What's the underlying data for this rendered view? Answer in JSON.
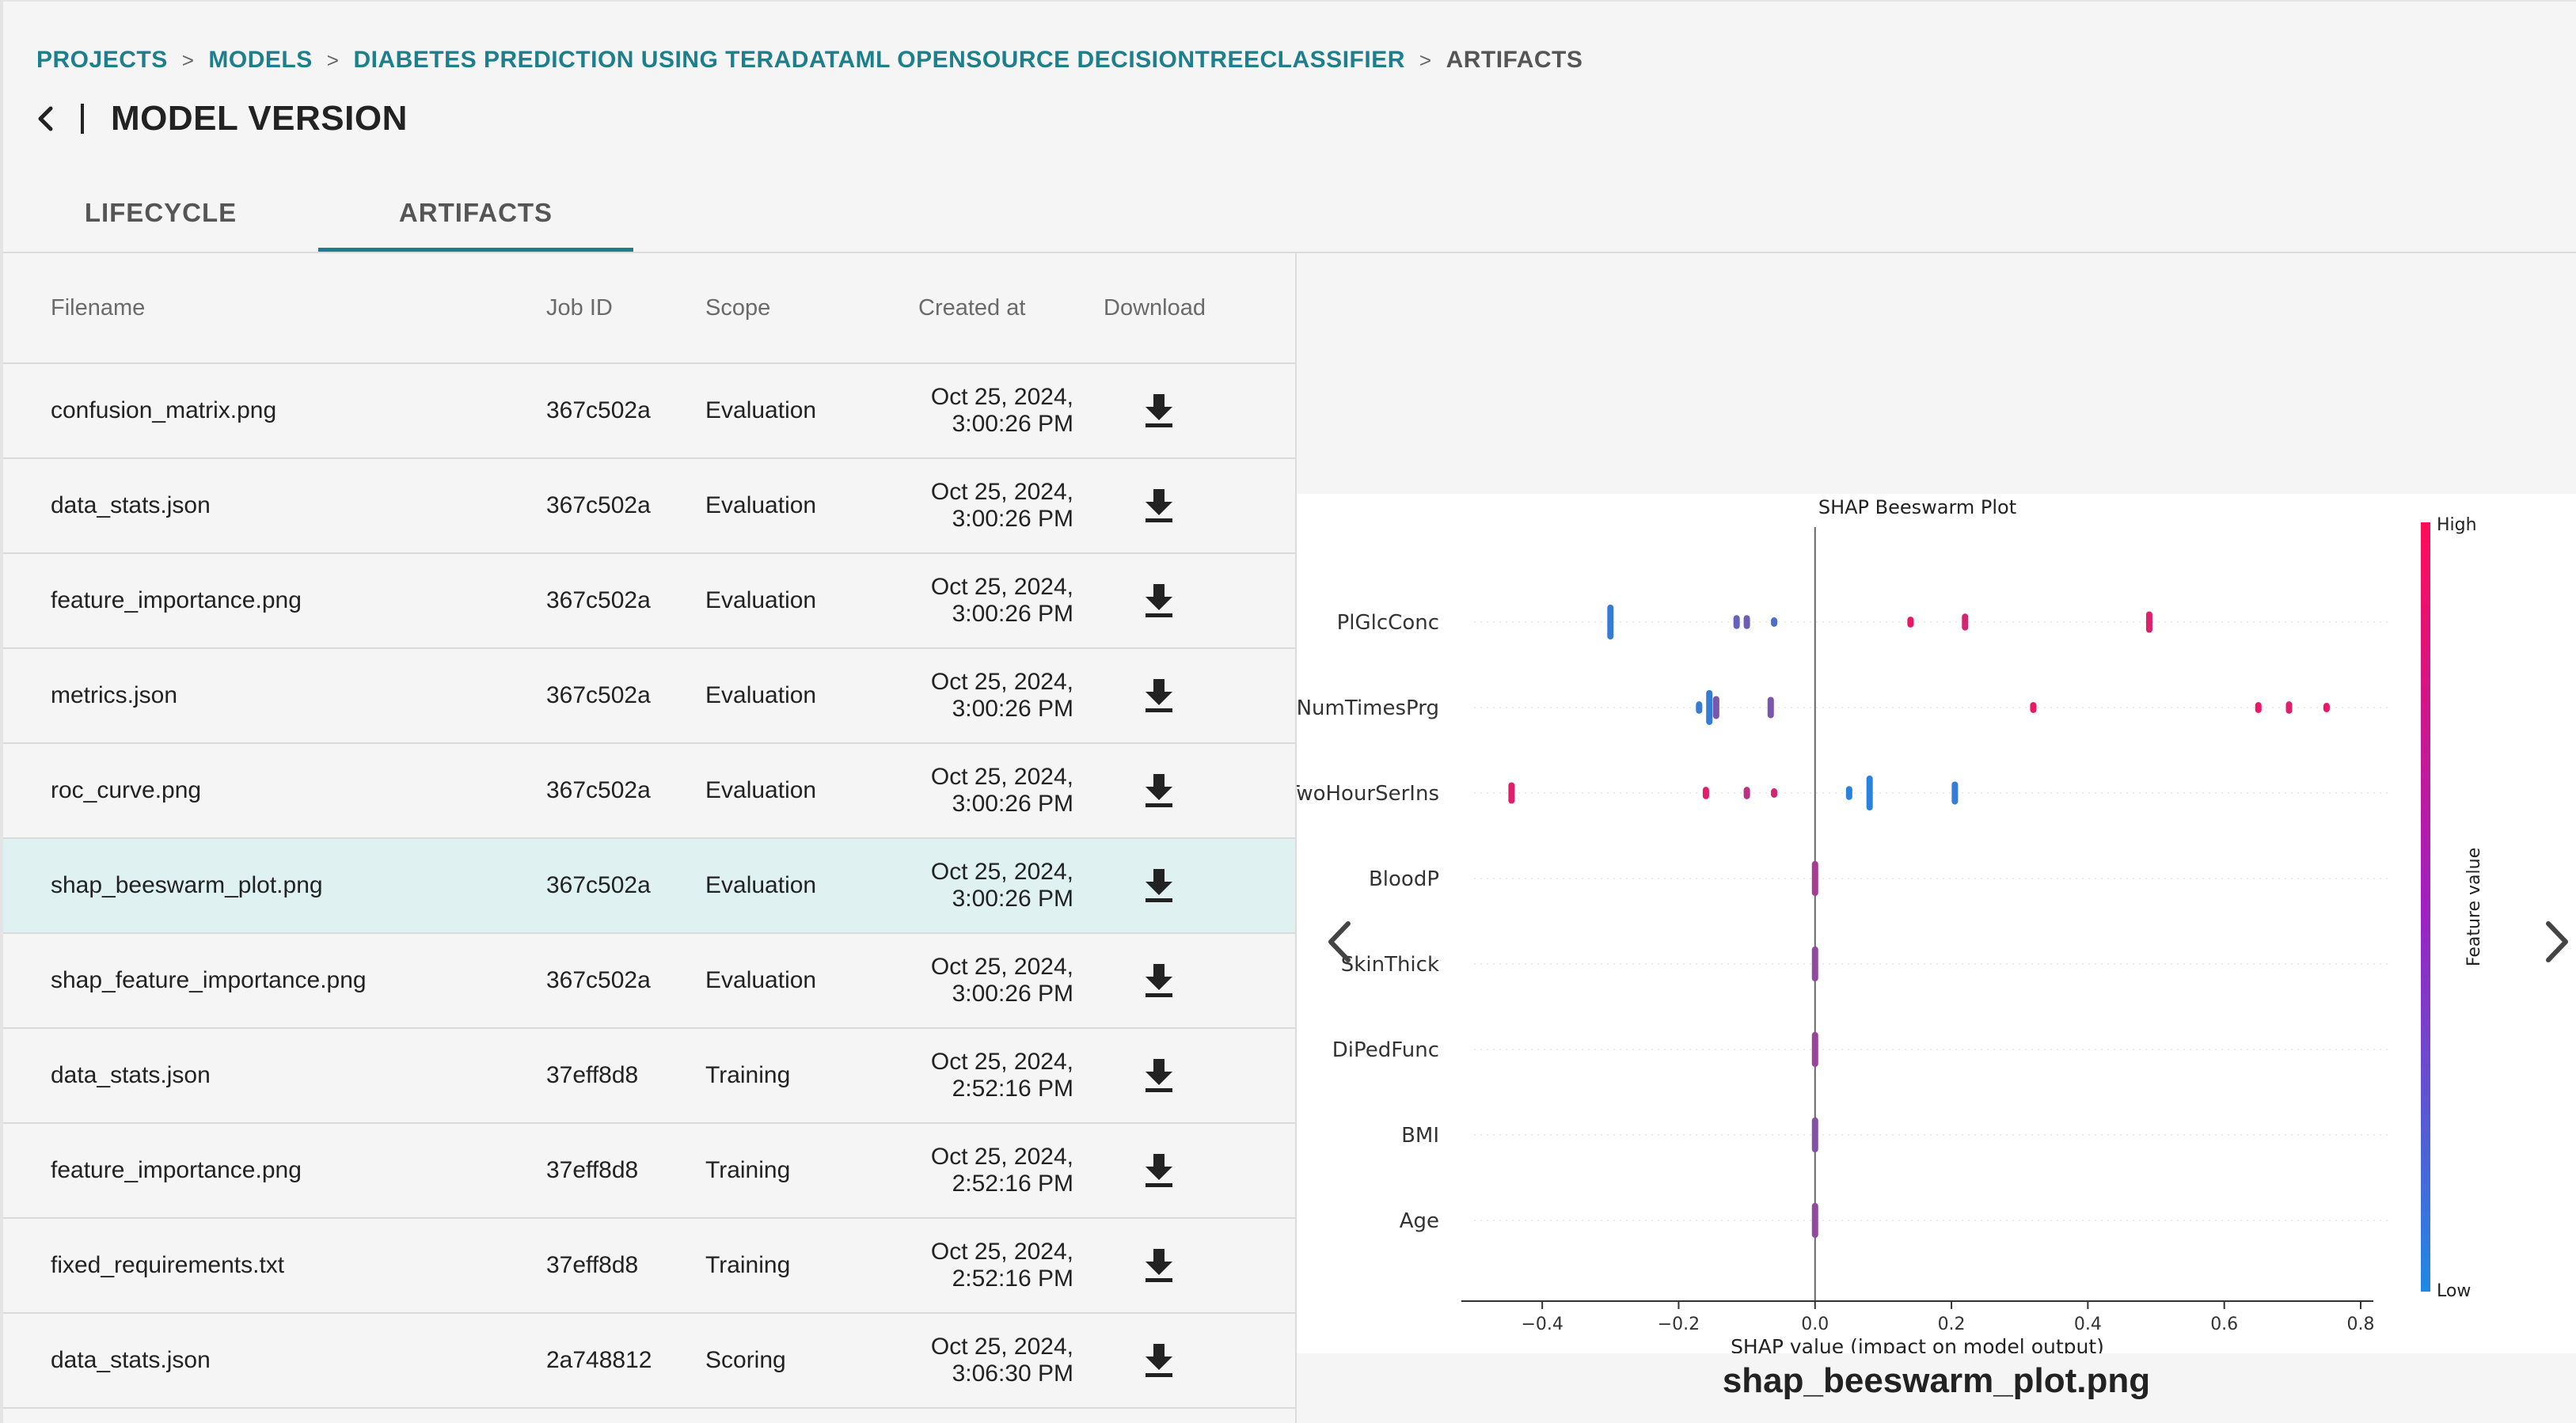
{
  "breadcrumb": {
    "items": [
      "PROJECTS",
      "MODELS",
      "DIABETES PREDICTION USING TERADATAML OPENSOURCE DECISIONTREECLASSIFIER"
    ],
    "current": "ARTIFACTS",
    "separator": ">"
  },
  "page": {
    "title": "MODEL VERSION"
  },
  "tabs": [
    {
      "label": "LIFECYCLE",
      "active": false
    },
    {
      "label": "ARTIFACTS",
      "active": true
    }
  ],
  "table": {
    "columns": {
      "filename": "Filename",
      "job_id": "Job ID",
      "scope": "Scope",
      "created_at": "Created at",
      "download": "Download"
    },
    "rows": [
      {
        "filename": "confusion_matrix.png",
        "job_id": "367c502a",
        "scope": "Evaluation",
        "date": "Oct 25, 2024,",
        "time": "3:00:26 PM"
      },
      {
        "filename": "data_stats.json",
        "job_id": "367c502a",
        "scope": "Evaluation",
        "date": "Oct 25, 2024,",
        "time": "3:00:26 PM"
      },
      {
        "filename": "feature_importance.png",
        "job_id": "367c502a",
        "scope": "Evaluation",
        "date": "Oct 25, 2024,",
        "time": "3:00:26 PM"
      },
      {
        "filename": "metrics.json",
        "job_id": "367c502a",
        "scope": "Evaluation",
        "date": "Oct 25, 2024,",
        "time": "3:00:26 PM"
      },
      {
        "filename": "roc_curve.png",
        "job_id": "367c502a",
        "scope": "Evaluation",
        "date": "Oct 25, 2024,",
        "time": "3:00:26 PM"
      },
      {
        "filename": "shap_beeswarm_plot.png",
        "job_id": "367c502a",
        "scope": "Evaluation",
        "date": "Oct 25, 2024,",
        "time": "3:00:26 PM",
        "selected": true
      },
      {
        "filename": "shap_feature_importance.png",
        "job_id": "367c502a",
        "scope": "Evaluation",
        "date": "Oct 25, 2024,",
        "time": "3:00:26 PM"
      },
      {
        "filename": "data_stats.json",
        "job_id": "37eff8d8",
        "scope": "Training",
        "date": "Oct 25, 2024,",
        "time": "2:52:16 PM"
      },
      {
        "filename": "feature_importance.png",
        "job_id": "37eff8d8",
        "scope": "Training",
        "date": "Oct 25, 2024,",
        "time": "2:52:16 PM"
      },
      {
        "filename": "fixed_requirements.txt",
        "job_id": "37eff8d8",
        "scope": "Training",
        "date": "Oct 25, 2024,",
        "time": "2:52:16 PM"
      },
      {
        "filename": "data_stats.json",
        "job_id": "2a748812",
        "scope": "Scoring",
        "date": "Oct 25, 2024,",
        "time": "3:06:30 PM"
      }
    ]
  },
  "preview": {
    "caption": "shap_beeswarm_plot.png",
    "icons": {
      "prev": "chevron-left-icon",
      "next": "chevron-right-icon"
    }
  },
  "chart_data": {
    "type": "scatter",
    "title": "SHAP Beeswarm Plot",
    "xlabel": "SHAP value (impact on model output)",
    "xlim": [
      -0.5,
      0.8
    ],
    "xticks": [
      "−0.4",
      "−0.2",
      "0.0",
      "0.2",
      "0.4",
      "0.6",
      "0.8"
    ],
    "xtick_values": [
      -0.4,
      -0.2,
      0.0,
      0.2,
      0.4,
      0.6,
      0.8
    ],
    "colorbar": {
      "label": "Feature value",
      "high": "High",
      "low": "Low",
      "low_color": "#1e88e5",
      "high_color": "#ff0d57"
    },
    "features": [
      {
        "name": "PlGlcConc",
        "points": [
          {
            "x": -0.3,
            "v": 0.1,
            "spread": 18
          },
          {
            "x": -0.115,
            "v": 0.3,
            "spread": 4
          },
          {
            "x": -0.1,
            "v": 0.35,
            "spread": 4
          },
          {
            "x": -0.06,
            "v": 0.2,
            "spread": 1
          },
          {
            "x": 0.14,
            "v": 0.9,
            "spread": 2
          },
          {
            "x": 0.22,
            "v": 0.8,
            "spread": 6
          },
          {
            "x": 0.49,
            "v": 0.85,
            "spread": 9
          }
        ]
      },
      {
        "name": "NumTimesPrg",
        "points": [
          {
            "x": -0.17,
            "v": 0.1,
            "spread": 3
          },
          {
            "x": -0.155,
            "v": 0.1,
            "spread": 18
          },
          {
            "x": -0.145,
            "v": 0.4,
            "spread": 10
          },
          {
            "x": -0.065,
            "v": 0.4,
            "spread": 9
          },
          {
            "x": 0.32,
            "v": 0.9,
            "spread": 2
          },
          {
            "x": 0.65,
            "v": 0.9,
            "spread": 2
          },
          {
            "x": 0.695,
            "v": 0.85,
            "spread": 3
          },
          {
            "x": 0.75,
            "v": 0.9,
            "spread": 1
          }
        ]
      },
      {
        "name": "TwoHourSerIns",
        "points": [
          {
            "x": -0.445,
            "v": 0.85,
            "spread": 9
          },
          {
            "x": -0.16,
            "v": 0.85,
            "spread": 3
          },
          {
            "x": -0.1,
            "v": 0.7,
            "spread": 3
          },
          {
            "x": -0.06,
            "v": 0.8,
            "spread": 1
          },
          {
            "x": 0.05,
            "v": 0.05,
            "spread": 4
          },
          {
            "x": 0.08,
            "v": 0.05,
            "spread": 18
          },
          {
            "x": 0.205,
            "v": 0.1,
            "spread": 10
          }
        ]
      },
      {
        "name": "BloodP",
        "points": [
          {
            "x": 0.0,
            "v": 0.6,
            "spread": 18
          }
        ]
      },
      {
        "name": "SkinThick",
        "points": [
          {
            "x": 0.0,
            "v": 0.5,
            "spread": 18
          }
        ]
      },
      {
        "name": "DiPedFunc",
        "points": [
          {
            "x": 0.0,
            "v": 0.55,
            "spread": 18
          }
        ]
      },
      {
        "name": "BMI",
        "points": [
          {
            "x": 0.0,
            "v": 0.45,
            "spread": 18
          }
        ]
      },
      {
        "name": "Age",
        "points": [
          {
            "x": 0.0,
            "v": 0.5,
            "spread": 18
          }
        ]
      }
    ]
  }
}
